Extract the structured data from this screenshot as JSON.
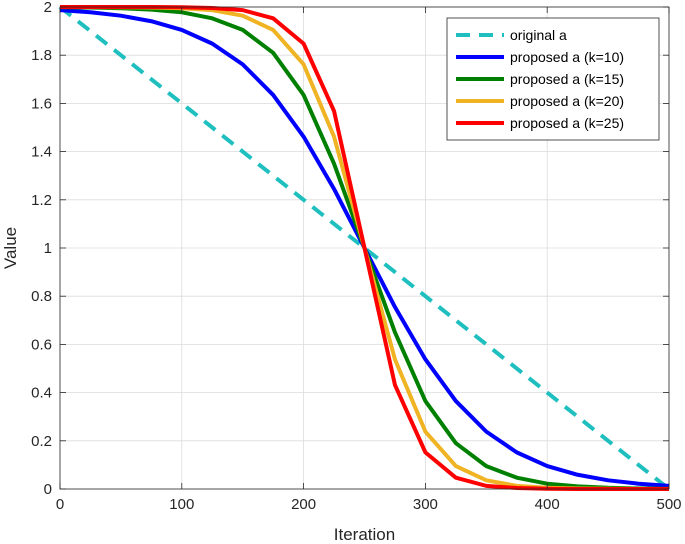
{
  "chart_data": {
    "type": "line",
    "title": "",
    "xlabel": "Iteration",
    "ylabel": "Value",
    "xlim": [
      0,
      500
    ],
    "ylim": [
      0,
      2
    ],
    "xticks": [
      0,
      100,
      200,
      300,
      400,
      500
    ],
    "yticks": [
      0,
      0.2,
      0.4,
      0.6,
      0.8,
      1,
      1.2,
      1.4,
      1.6,
      1.8,
      2
    ],
    "xtick_labels": [
      "0",
      "100",
      "200",
      "300",
      "400",
      "500"
    ],
    "ytick_labels": [
      "0",
      "0.2",
      "0.4",
      "0.6",
      "0.8",
      "1",
      "1.2",
      "1.4",
      "1.6",
      "1.8",
      "2"
    ],
    "grid": true,
    "legend_position": "top-right",
    "series": [
      {
        "name": "original a",
        "style": "dashed",
        "color": "#1fbfbf",
        "x": [
          0,
          50,
          100,
          150,
          200,
          250,
          300,
          350,
          400,
          450,
          500
        ],
        "y": [
          2.0,
          1.8,
          1.6,
          1.4,
          1.2,
          1.0,
          0.8,
          0.6,
          0.4,
          0.2,
          0.0
        ]
      },
      {
        "name": "proposed a (k=10)",
        "style": "solid",
        "color": "#0000ff",
        "x": [
          0,
          25,
          50,
          75,
          100,
          125,
          150,
          175,
          200,
          225,
          250,
          275,
          300,
          325,
          350,
          375,
          400,
          425,
          450,
          475,
          500
        ],
        "y": [
          1.987,
          1.978,
          1.964,
          1.941,
          1.905,
          1.848,
          1.762,
          1.635,
          1.462,
          1.245,
          1.0,
          0.755,
          0.538,
          0.365,
          0.238,
          0.152,
          0.095,
          0.059,
          0.036,
          0.022,
          0.013
        ]
      },
      {
        "name": "proposed a (k=15)",
        "style": "solid",
        "color": "#008000",
        "x": [
          0,
          25,
          50,
          75,
          100,
          125,
          150,
          175,
          200,
          225,
          250,
          275,
          300,
          325,
          350,
          375,
          400,
          425,
          450,
          475,
          500
        ],
        "y": [
          1.999,
          1.998,
          1.995,
          1.989,
          1.978,
          1.953,
          1.905,
          1.81,
          1.635,
          1.35,
          1.0,
          0.65,
          0.365,
          0.19,
          0.095,
          0.047,
          0.022,
          0.011,
          0.005,
          0.002,
          0.001
        ]
      },
      {
        "name": "proposed a (k=20)",
        "style": "solid",
        "color": "#f0b323",
        "x": [
          0,
          25,
          50,
          75,
          100,
          125,
          150,
          175,
          200,
          225,
          250,
          275,
          300,
          325,
          350,
          375,
          400,
          425,
          450,
          475,
          500
        ],
        "y": [
          2.0,
          2.0,
          1.999,
          1.998,
          1.995,
          1.987,
          1.964,
          1.905,
          1.762,
          1.462,
          1.0,
          0.538,
          0.238,
          0.095,
          0.036,
          0.013,
          0.005,
          0.002,
          0.001,
          0.0,
          0.0
        ]
      },
      {
        "name": "proposed a (k=25)",
        "style": "solid",
        "color": "#ff0000",
        "x": [
          0,
          25,
          50,
          75,
          100,
          125,
          150,
          175,
          200,
          225,
          250,
          275,
          300,
          325,
          350,
          375,
          400,
          425,
          450,
          475,
          500
        ],
        "y": [
          2.0,
          2.0,
          2.0,
          2.0,
          1.999,
          1.996,
          1.987,
          1.953,
          1.848,
          1.568,
          1.0,
          0.432,
          0.152,
          0.047,
          0.013,
          0.004,
          0.001,
          0.0,
          0.0,
          0.0,
          0.0
        ]
      }
    ]
  }
}
